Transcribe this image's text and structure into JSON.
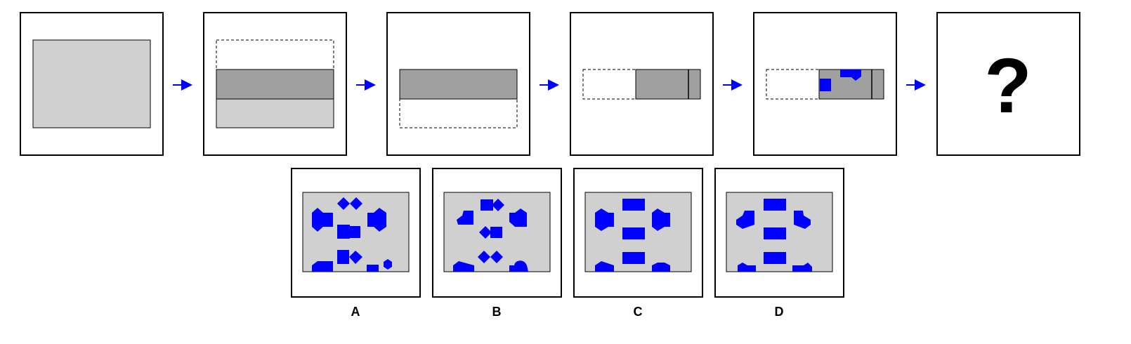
{
  "sequence": {
    "steps": [
      {
        "id": "step-1",
        "content": "full-sheet"
      },
      {
        "id": "step-2",
        "content": "fold-top-down"
      },
      {
        "id": "step-3",
        "content": "folded-half"
      },
      {
        "id": "step-4",
        "content": "fold-left-to-right"
      },
      {
        "id": "step-5",
        "content": "punched"
      },
      {
        "id": "step-6",
        "content": "question",
        "symbol": "?"
      }
    ],
    "arrow_icon": "right-arrow-icon"
  },
  "options": [
    {
      "label": "A"
    },
    {
      "label": "B"
    },
    {
      "label": "C"
    },
    {
      "label": "D"
    }
  ],
  "colors": {
    "paper": "#d0d0d0",
    "folded": "#a0a0a0",
    "hole": "#0000ff",
    "arrow": "#0000ff",
    "frame": "#000000"
  }
}
